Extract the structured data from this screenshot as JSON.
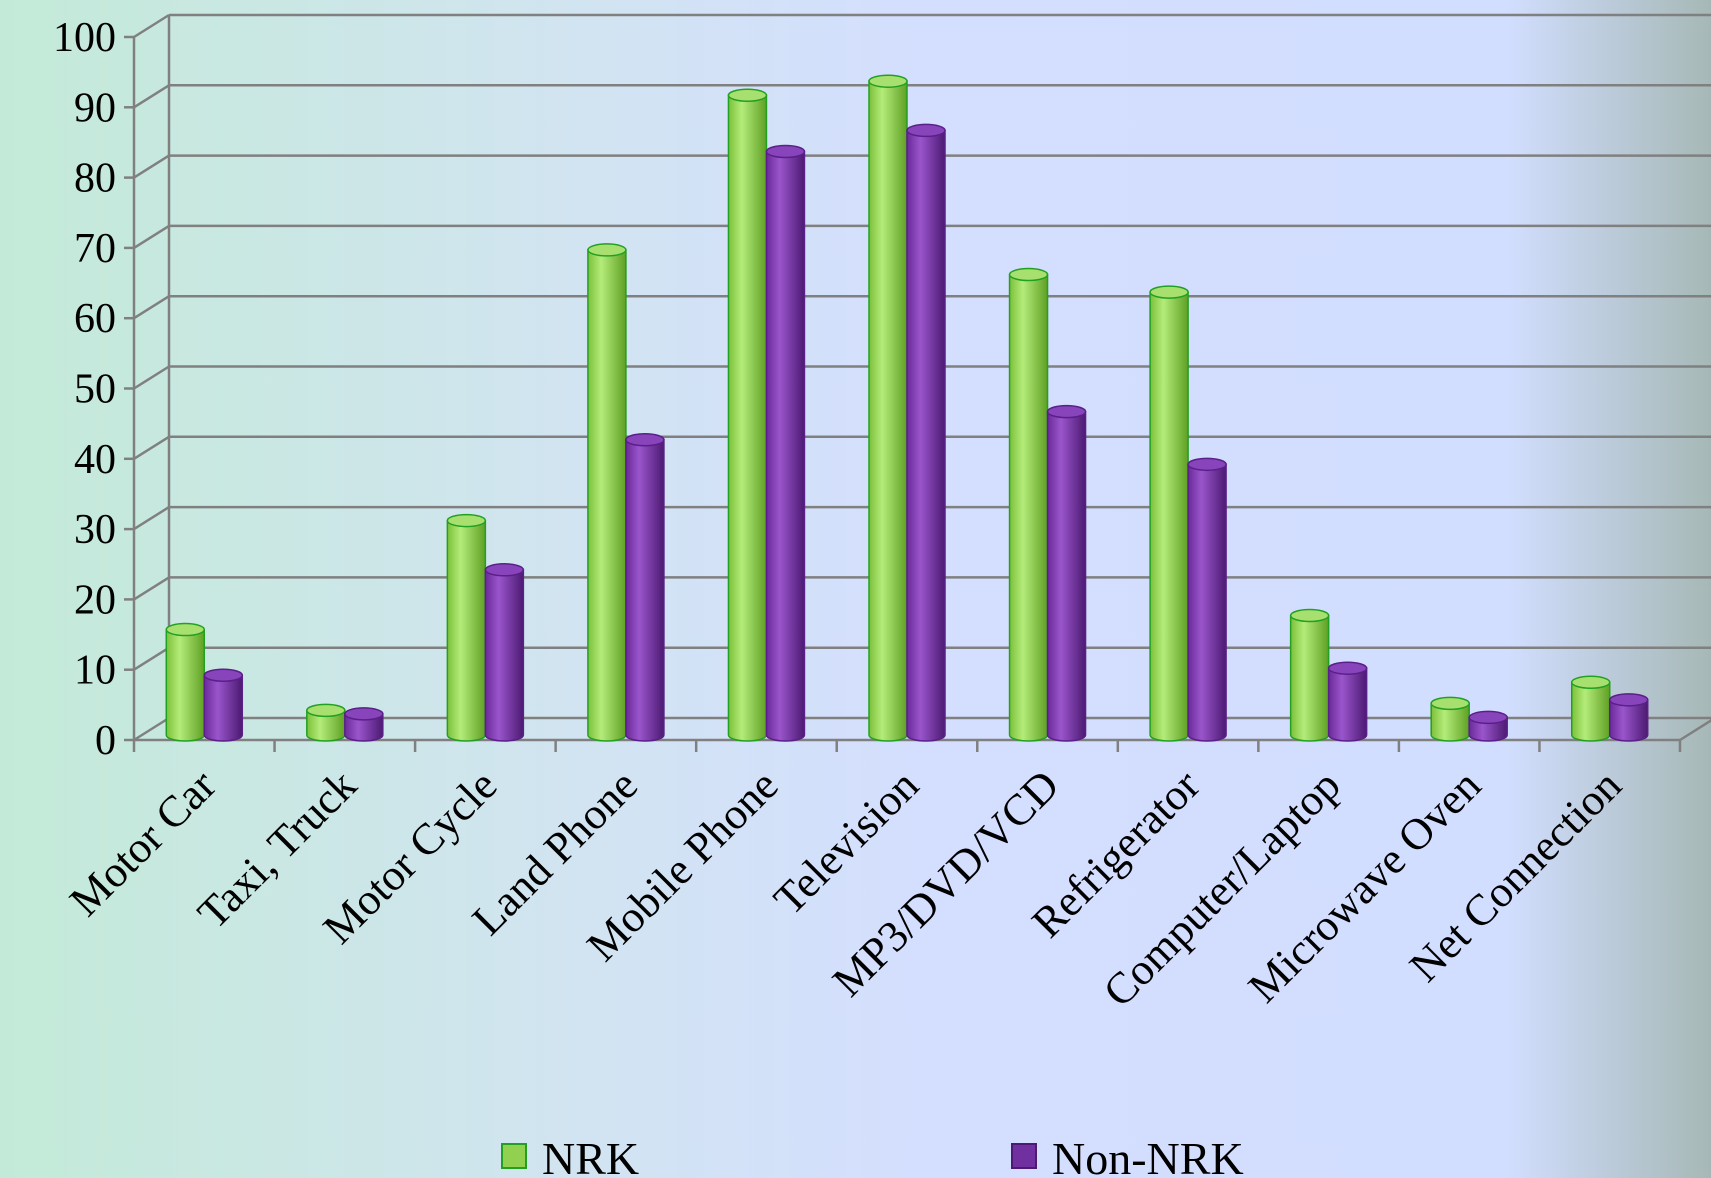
{
  "chart_data": {
    "type": "bar",
    "title": "",
    "xlabel": "",
    "ylabel": "",
    "ylim": [
      0,
      100
    ],
    "yticks": [
      0,
      10,
      20,
      30,
      40,
      50,
      60,
      70,
      80,
      90,
      100
    ],
    "grid": true,
    "legend_position": "bottom",
    "categories": [
      "Motor Car",
      "Taxi, Truck",
      "Motor Cycle",
      "Land Phone",
      "Mobile Phone",
      "Television",
      "MP3/DVD/VCD",
      "Refrigerator",
      "Computer/Laptop",
      "Microwave Oven",
      "Net Connection"
    ],
    "series": [
      {
        "name": "NRK",
        "color": "#92D050",
        "values": [
          15,
          3.5,
          30.5,
          69,
          91,
          93,
          65.5,
          63,
          17,
          4.5,
          7.5
        ]
      },
      {
        "name": "Non-NRK",
        "color": "#7030A0",
        "values": [
          8.5,
          3,
          23.5,
          42,
          83,
          86,
          46,
          38.5,
          9.5,
          2.5,
          5
        ]
      }
    ]
  }
}
